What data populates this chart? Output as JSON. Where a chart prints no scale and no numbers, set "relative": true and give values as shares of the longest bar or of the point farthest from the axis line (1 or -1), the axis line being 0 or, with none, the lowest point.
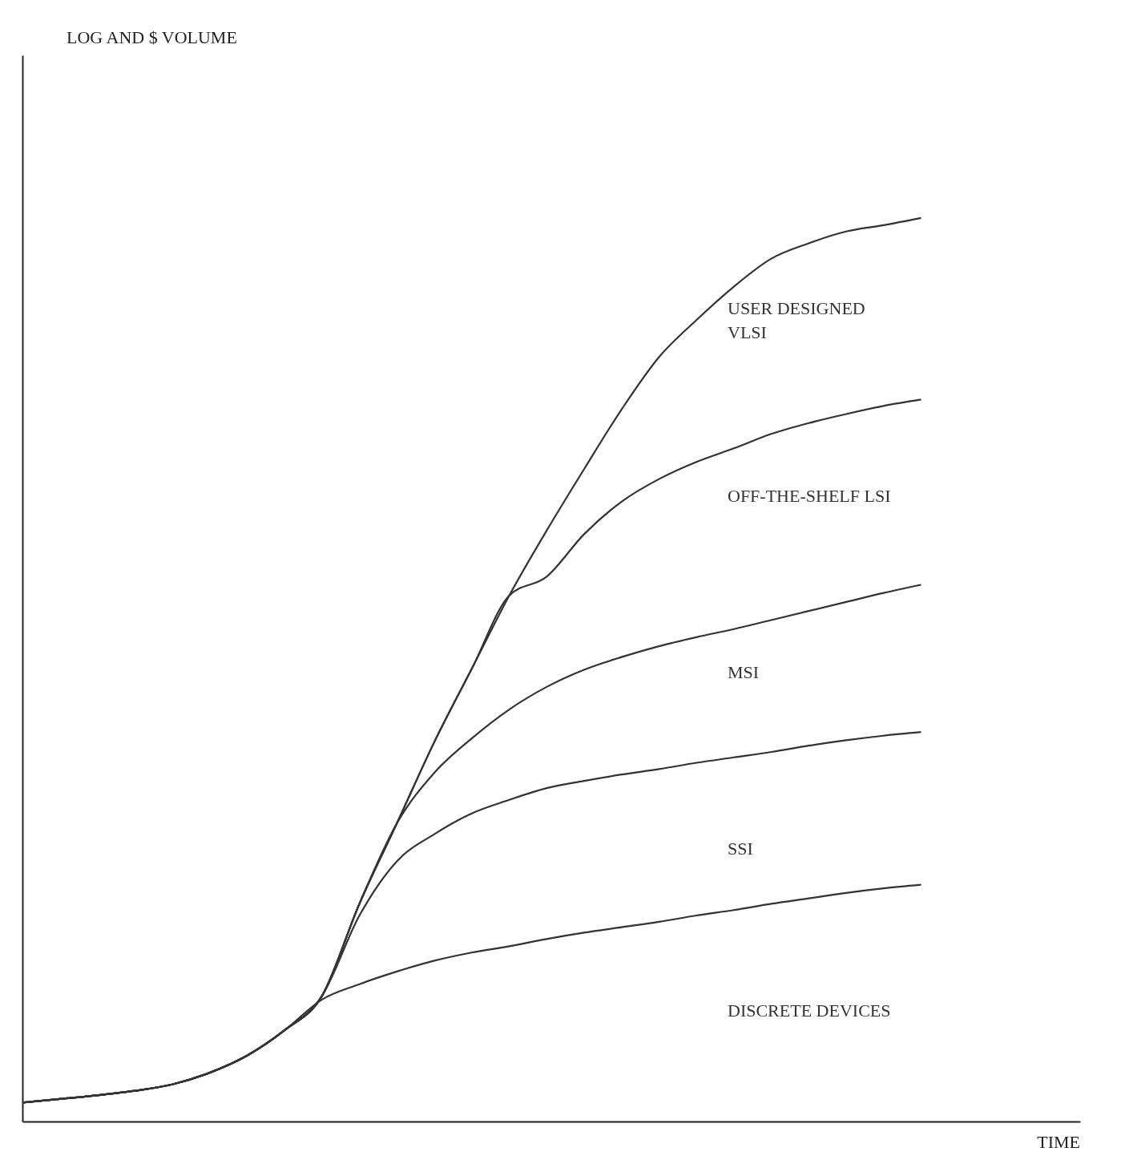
{
  "chart_data": {
    "type": "line",
    "relative": true,
    "categories": [
      null,
      null,
      null,
      null,
      null,
      null,
      null,
      null,
      null,
      null,
      null,
      null,
      null,
      null,
      null,
      null,
      null,
      null,
      null,
      null,
      null,
      null,
      null,
      null,
      null
    ],
    "series": [
      {
        "color": "#333333",
        "values": [
          0.021,
          0.025,
          0.029,
          0.034,
          0.041,
          0.054,
          0.073,
          0.101,
          0.139,
          0.241,
          0.33,
          0.42,
          0.501,
          0.582,
          0.654,
          0.722,
          0.788,
          0.846,
          0.887,
          0.924,
          0.955,
          0.972,
          0.985,
          0.992,
          1
        ]
      },
      {
        "color": "#333333",
        "values": [
          0.021,
          0.025,
          0.029,
          0.034,
          0.041,
          0.054,
          0.073,
          0.101,
          0.139,
          0.241,
          0.33,
          0.42,
          0.501,
          0.582,
          0.603,
          0.65,
          0.686,
          0.711,
          0.73,
          0.745,
          0.761,
          0.773,
          0.783,
          0.792,
          0.799
        ]
      },
      {
        "color": "#333333",
        "values": [
          0.021,
          0.025,
          0.029,
          0.034,
          0.041,
          0.054,
          0.073,
          0.101,
          0.139,
          0.241,
          0.33,
          0.386,
          0.424,
          0.456,
          0.481,
          0.5,
          0.514,
          0.526,
          0.536,
          0.545,
          0.555,
          0.565,
          0.575,
          0.585,
          0.594
        ]
      },
      {
        "color": "#333333",
        "values": [
          0.021,
          0.025,
          0.029,
          0.034,
          0.041,
          0.054,
          0.073,
          0.101,
          0.139,
          0.228,
          0.288,
          0.318,
          0.341,
          0.356,
          0.369,
          0.377,
          0.384,
          0.39,
          0.397,
          0.403,
          0.409,
          0.416,
          0.422,
          0.427,
          0.431
        ]
      },
      {
        "color": "#333333",
        "values": [
          0.021,
          0.025,
          0.029,
          0.034,
          0.041,
          0.054,
          0.073,
          0.101,
          0.135,
          0.152,
          0.166,
          0.178,
          0.187,
          0.194,
          0.202,
          0.209,
          0.215,
          0.221,
          0.228,
          0.234,
          0.241,
          0.247,
          0.253,
          0.258,
          0.262
        ]
      }
    ],
    "annotations": [
      "LOG AND $ VOLUME",
      "USER DESIGNED\nVLSI",
      "OFF-THE-SHELF LSI",
      "MSI",
      "SSI",
      "DISCRETE DEVICES",
      "TIME"
    ]
  }
}
